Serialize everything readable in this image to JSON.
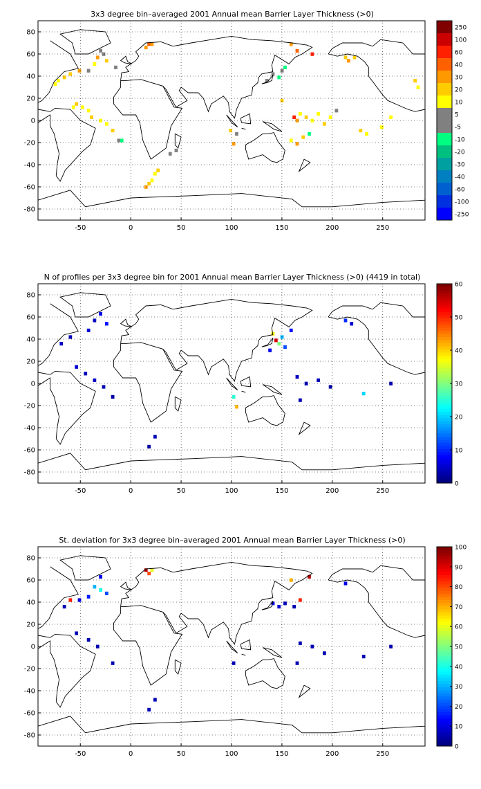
{
  "figure": {
    "background": "#ffffff"
  },
  "chart_data": [
    {
      "type": "heatmap",
      "title": "3x3 degree bin–averaged 2001 Annual mean Barrier Layer Thickness (>0)",
      "xlabel": "",
      "ylabel": "",
      "xlim": [
        -92,
        292
      ],
      "ylim": [
        -90,
        90
      ],
      "x_ticks": [
        -50,
        0,
        50,
        100,
        150,
        200,
        250
      ],
      "y_ticks": [
        80,
        60,
        40,
        20,
        0,
        -20,
        -40,
        -60,
        -80
      ],
      "grid": true,
      "colorbar": {
        "kind": "discrete",
        "labels": [
          "250",
          "100",
          "60",
          "40",
          "30",
          "20",
          "10",
          "5",
          "-5",
          "-10",
          "-20",
          "-30",
          "-40",
          "-60",
          "-100",
          "-250"
        ],
        "colors": [
          "#800000",
          "#cc0000",
          "#ff2000",
          "#ff6000",
          "#ff9900",
          "#ffcc00",
          "#ffff00",
          "#808080",
          "#808080",
          "#00ff80",
          "#00c080",
          "#00a0a0",
          "#0080c0",
          "#0060d0",
          "#0030e0",
          "#0000ff"
        ]
      },
      "cells": [
        {
          "lon": 18,
          "lat": 69,
          "value": 40
        },
        {
          "lon": 21,
          "lat": 69,
          "value": 30
        },
        {
          "lon": 15,
          "lat": 66,
          "value": 30
        },
        {
          "lon": -30,
          "lat": 63,
          "value": 5
        },
        {
          "lon": -27,
          "lat": 60,
          "value": 5
        },
        {
          "lon": -33,
          "lat": 57,
          "value": 30
        },
        {
          "lon": -24,
          "lat": 54,
          "value": 20
        },
        {
          "lon": -36,
          "lat": 51,
          "value": 15
        },
        {
          "lon": -15,
          "lat": 48,
          "value": 5
        },
        {
          "lon": -42,
          "lat": 45,
          "value": 5
        },
        {
          "lon": -51,
          "lat": 45,
          "value": 30
        },
        {
          "lon": -60,
          "lat": 42,
          "value": 20
        },
        {
          "lon": -66,
          "lat": 39,
          "value": 20
        },
        {
          "lon": -72,
          "lat": 36,
          "value": 15
        },
        {
          "lon": -75,
          "lat": 33,
          "value": 15
        },
        {
          "lon": -57,
          "lat": 12,
          "value": 15
        },
        {
          "lon": -54,
          "lat": 15,
          "value": 20
        },
        {
          "lon": -48,
          "lat": 12,
          "value": 15
        },
        {
          "lon": -42,
          "lat": 9,
          "value": 15
        },
        {
          "lon": -39,
          "lat": 3,
          "value": 20
        },
        {
          "lon": -30,
          "lat": 0,
          "value": 15
        },
        {
          "lon": -24,
          "lat": -3,
          "value": 15
        },
        {
          "lon": -18,
          "lat": -9,
          "value": 20
        },
        {
          "lon": -12,
          "lat": -18,
          "value": 5
        },
        {
          "lon": -9,
          "lat": -18,
          "value": -10
        },
        {
          "lon": 15,
          "lat": -60,
          "value": 30
        },
        {
          "lon": 18,
          "lat": -57,
          "value": 20
        },
        {
          "lon": 21,
          "lat": -54,
          "value": 15
        },
        {
          "lon": 24,
          "lat": -48,
          "value": 15
        },
        {
          "lon": 27,
          "lat": -45,
          "value": 20
        },
        {
          "lon": 39,
          "lat": -30,
          "value": 5
        },
        {
          "lon": 45,
          "lat": -27,
          "value": 5
        },
        {
          "lon": 99,
          "lat": -9,
          "value": 20
        },
        {
          "lon": 102,
          "lat": -21,
          "value": 30
        },
        {
          "lon": 105,
          "lat": -12,
          "value": 5
        },
        {
          "lon": 135,
          "lat": 36,
          "value": 5
        },
        {
          "lon": 141,
          "lat": 42,
          "value": 5
        },
        {
          "lon": 147,
          "lat": 39,
          "value": -10
        },
        {
          "lon": 150,
          "lat": 45,
          "value": 5
        },
        {
          "lon": 153,
          "lat": 48,
          "value": -10
        },
        {
          "lon": 159,
          "lat": 69,
          "value": 30
        },
        {
          "lon": 165,
          "lat": 63,
          "value": 40
        },
        {
          "lon": 180,
          "lat": 60,
          "value": 60
        },
        {
          "lon": 213,
          "lat": 57,
          "value": 20
        },
        {
          "lon": 216,
          "lat": 54,
          "value": 30
        },
        {
          "lon": 222,
          "lat": 57,
          "value": 20
        },
        {
          "lon": 150,
          "lat": 18,
          "value": 20
        },
        {
          "lon": 162,
          "lat": 3,
          "value": 60
        },
        {
          "lon": 165,
          "lat": 0,
          "value": 30
        },
        {
          "lon": 168,
          "lat": 6,
          "value": 15
        },
        {
          "lon": 174,
          "lat": 3,
          "value": 20
        },
        {
          "lon": 180,
          "lat": 0,
          "value": 15
        },
        {
          "lon": 186,
          "lat": 6,
          "value": 15
        },
        {
          "lon": 192,
          "lat": -3,
          "value": 20
        },
        {
          "lon": 198,
          "lat": 3,
          "value": 15
        },
        {
          "lon": 204,
          "lat": 9,
          "value": 5
        },
        {
          "lon": 159,
          "lat": -18,
          "value": 15
        },
        {
          "lon": 165,
          "lat": -21,
          "value": 30
        },
        {
          "lon": 171,
          "lat": -15,
          "value": 20
        },
        {
          "lon": 177,
          "lat": -12,
          "value": -10
        },
        {
          "lon": 228,
          "lat": -9,
          "value": 20
        },
        {
          "lon": 234,
          "lat": -12,
          "value": 15
        },
        {
          "lon": 249,
          "lat": -6,
          "value": 15
        },
        {
          "lon": 258,
          "lat": 3,
          "value": 15
        },
        {
          "lon": 285,
          "lat": 30,
          "value": 15
        },
        {
          "lon": 282,
          "lat": 36,
          "value": 20
        }
      ]
    },
    {
      "type": "heatmap",
      "title": "N of profiles per 3x3 degree bin for 2001 Annual mean Barrier Layer Thickness (>0) (4419 in total)",
      "xlabel": "",
      "ylabel": "",
      "xlim": [
        -92,
        292
      ],
      "ylim": [
        -90,
        90
      ],
      "x_ticks": [
        -50,
        0,
        50,
        100,
        150,
        200,
        250
      ],
      "y_ticks": [
        80,
        60,
        40,
        20,
        0,
        -20,
        -40,
        -60,
        -80
      ],
      "grid": true,
      "colorbar": {
        "kind": "continuous",
        "vmin": 0,
        "vmax": 60,
        "ticks": [
          0,
          10,
          20,
          30,
          40,
          50,
          60
        ]
      },
      "cells": [
        {
          "lon": -30,
          "lat": 63,
          "value": 6
        },
        {
          "lon": -36,
          "lat": 57,
          "value": 4
        },
        {
          "lon": -24,
          "lat": 54,
          "value": 8
        },
        {
          "lon": -42,
          "lat": 48,
          "value": 5
        },
        {
          "lon": -60,
          "lat": 42,
          "value": 3
        },
        {
          "lon": -69,
          "lat": 36,
          "value": 4
        },
        {
          "lon": -54,
          "lat": 15,
          "value": 5
        },
        {
          "lon": -45,
          "lat": 9,
          "value": 3
        },
        {
          "lon": -36,
          "lat": 3,
          "value": 4
        },
        {
          "lon": -27,
          "lat": -3,
          "value": 3
        },
        {
          "lon": -18,
          "lat": -12,
          "value": 2
        },
        {
          "lon": 18,
          "lat": -57,
          "value": 2
        },
        {
          "lon": 24,
          "lat": -48,
          "value": 3
        },
        {
          "lon": 102,
          "lat": -12,
          "value": 25
        },
        {
          "lon": 105,
          "lat": -21,
          "value": 42
        },
        {
          "lon": 141,
          "lat": 45,
          "value": 38
        },
        {
          "lon": 144,
          "lat": 39,
          "value": 55
        },
        {
          "lon": 147,
          "lat": 36,
          "value": 30
        },
        {
          "lon": 150,
          "lat": 42,
          "value": 18
        },
        {
          "lon": 153,
          "lat": 33,
          "value": 12
        },
        {
          "lon": 138,
          "lat": 30,
          "value": 6
        },
        {
          "lon": 159,
          "lat": 48,
          "value": 8
        },
        {
          "lon": 213,
          "lat": 57,
          "value": 10
        },
        {
          "lon": 219,
          "lat": 54,
          "value": 5
        },
        {
          "lon": 165,
          "lat": 6,
          "value": 4
        },
        {
          "lon": 174,
          "lat": 0,
          "value": 3
        },
        {
          "lon": 186,
          "lat": 3,
          "value": 3
        },
        {
          "lon": 198,
          "lat": -3,
          "value": 2
        },
        {
          "lon": 168,
          "lat": -15,
          "value": 3
        },
        {
          "lon": 231,
          "lat": -9,
          "value": 20
        },
        {
          "lon": 258,
          "lat": 0,
          "value": 3
        }
      ]
    },
    {
      "type": "heatmap",
      "title": "St. deviation for 3x3 degree bin–averaged 2001 Annual mean Barrier Layer Thickness (>0)",
      "xlabel": "",
      "ylabel": "",
      "xlim": [
        -92,
        292
      ],
      "ylim": [
        -90,
        90
      ],
      "x_ticks": [
        -50,
        0,
        50,
        100,
        150,
        200,
        250
      ],
      "y_ticks": [
        80,
        60,
        40,
        20,
        0,
        -20,
        -40,
        -60,
        -80
      ],
      "grid": true,
      "colorbar": {
        "kind": "continuous",
        "vmin": 0,
        "vmax": 100,
        "ticks": [
          0,
          10,
          20,
          30,
          40,
          50,
          60,
          70,
          80,
          90,
          100
        ]
      },
      "cells": [
        {
          "lon": 15,
          "lat": 69,
          "value": 95
        },
        {
          "lon": 18,
          "lat": 66,
          "value": 80
        },
        {
          "lon": 21,
          "lat": 69,
          "value": 60
        },
        {
          "lon": -30,
          "lat": 63,
          "value": 10
        },
        {
          "lon": -36,
          "lat": 54,
          "value": 30
        },
        {
          "lon": -30,
          "lat": 51,
          "value": 40
        },
        {
          "lon": -24,
          "lat": 48,
          "value": 20
        },
        {
          "lon": -42,
          "lat": 45,
          "value": 15
        },
        {
          "lon": -60,
          "lat": 42,
          "value": 85
        },
        {
          "lon": -51,
          "lat": 42,
          "value": 10
        },
        {
          "lon": -66,
          "lat": 36,
          "value": 5
        },
        {
          "lon": -54,
          "lat": 12,
          "value": 5
        },
        {
          "lon": -42,
          "lat": 6,
          "value": 5
        },
        {
          "lon": -33,
          "lat": 0,
          "value": 5
        },
        {
          "lon": -18,
          "lat": -15,
          "value": 5
        },
        {
          "lon": 18,
          "lat": -57,
          "value": 5
        },
        {
          "lon": 24,
          "lat": -48,
          "value": 5
        },
        {
          "lon": 141,
          "lat": 39,
          "value": 10
        },
        {
          "lon": 147,
          "lat": 36,
          "value": 8
        },
        {
          "lon": 153,
          "lat": 39,
          "value": 6
        },
        {
          "lon": 168,
          "lat": 42,
          "value": 85
        },
        {
          "lon": 162,
          "lat": 36,
          "value": 5
        },
        {
          "lon": 159,
          "lat": 60,
          "value": 70
        },
        {
          "lon": 177,
          "lat": 63,
          "value": 95
        },
        {
          "lon": 213,
          "lat": 57,
          "value": 10
        },
        {
          "lon": 168,
          "lat": 3,
          "value": 5
        },
        {
          "lon": 180,
          "lat": 0,
          "value": 5
        },
        {
          "lon": 192,
          "lat": -6,
          "value": 5
        },
        {
          "lon": 165,
          "lat": -15,
          "value": 5
        },
        {
          "lon": 231,
          "lat": -9,
          "value": 5
        },
        {
          "lon": 258,
          "lat": 0,
          "value": 5
        },
        {
          "lon": 102,
          "lat": -15,
          "value": 5
        }
      ]
    }
  ]
}
